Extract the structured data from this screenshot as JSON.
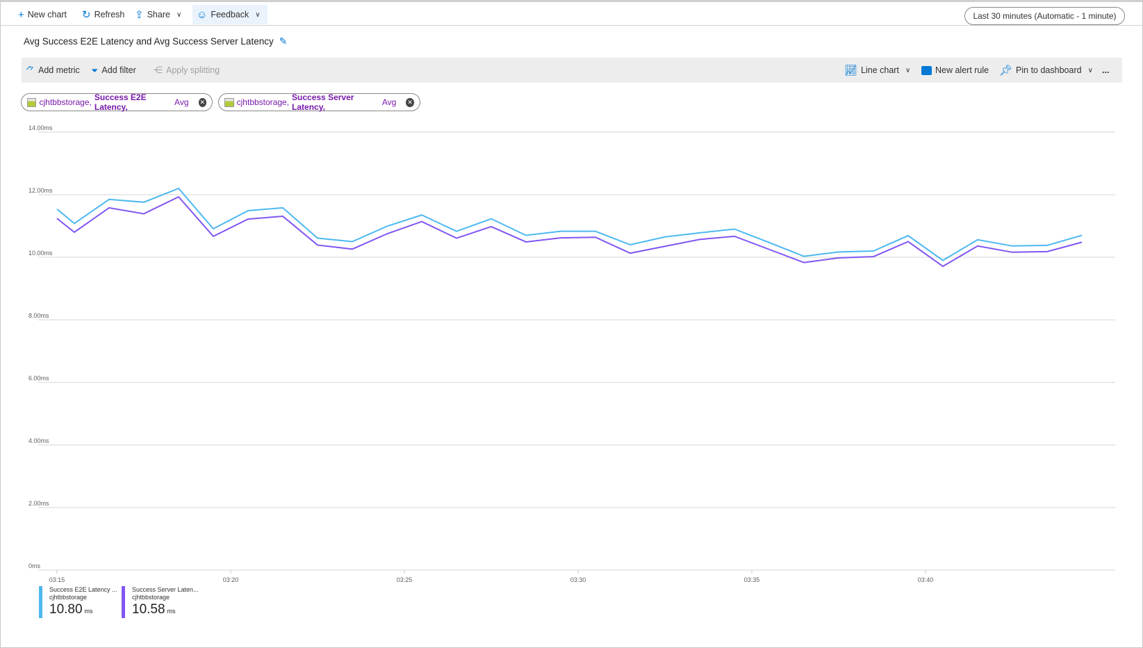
{
  "toolbar": {
    "new_chart": "New chart",
    "refresh": "Refresh",
    "share": "Share",
    "feedback": "Feedback",
    "time_range": "Last 30 minutes (Automatic - 1 minute)"
  },
  "chart_title": "Avg Success E2E Latency and Avg Success Server Latency",
  "chart_toolbar": {
    "add_metric": "Add metric",
    "add_filter": "Add filter",
    "apply_splitting": "Apply splitting",
    "line_chart": "Line chart",
    "new_alert_rule": "New alert rule",
    "pin_to_dashboard": "Pin to dashboard",
    "more": "..."
  },
  "metric_chips": [
    {
      "resource": "cjhtbbstorage,",
      "metric": "Success E2E Latency,",
      "agg": "Avg"
    },
    {
      "resource": "cjhtbbstorage,",
      "metric": "Success Server Latency,",
      "agg": "Avg"
    }
  ],
  "legend": [
    {
      "name": "Success E2E Latency ...",
      "resource": "cjhtbbstorage",
      "value": "10.80",
      "unit": "ms",
      "color": "#4db8f0"
    },
    {
      "name": "Success Server Laten...",
      "resource": "cjhtbbstorage",
      "value": "10.58",
      "unit": "ms",
      "color": "#8155f2"
    }
  ],
  "chart_data": {
    "type": "line",
    "x_unit": "minutes",
    "x": [
      "03:15:00",
      "03:15:30",
      "03:16:30",
      "03:17:30",
      "03:18:30",
      "03:19:30",
      "03:20:30",
      "03:21:30",
      "03:22:30",
      "03:23:30",
      "03:24:30",
      "03:25:30",
      "03:26:30",
      "03:27:30",
      "03:28:30",
      "03:29:30",
      "03:30:30",
      "03:31:30",
      "03:32:30",
      "03:33:30",
      "03:34:30",
      "03:35:30",
      "03:36:30",
      "03:37:30",
      "03:38:30",
      "03:39:30",
      "03:40:30",
      "03:41:30",
      "03:42:30",
      "03:43:30",
      "03:44:30"
    ],
    "series": [
      {
        "name": "Success E2E Latency",
        "color": "#4db8f0",
        "values": [
          11.54,
          11.08,
          11.85,
          11.76,
          12.2,
          10.91,
          11.49,
          11.58,
          10.61,
          10.5,
          10.99,
          11.35,
          10.83,
          11.23,
          10.7,
          10.83,
          10.83,
          10.4,
          10.65,
          10.78,
          10.9,
          10.47,
          10.03,
          10.17,
          10.2,
          10.69,
          9.9,
          10.56,
          10.36,
          10.38,
          10.7
        ]
      },
      {
        "name": "Success Server Latency",
        "color": "#8155f2",
        "values": [
          11.24,
          10.8,
          11.58,
          11.39,
          11.93,
          10.67,
          11.22,
          11.31,
          10.39,
          10.26,
          10.75,
          11.14,
          10.61,
          10.98,
          10.49,
          10.62,
          10.64,
          10.13,
          10.35,
          10.57,
          10.67,
          10.25,
          9.83,
          9.98,
          10.02,
          10.5,
          9.71,
          10.36,
          10.16,
          10.18,
          10.48
        ]
      }
    ],
    "y_ticks": [
      "0ms",
      "2.00ms",
      "4.00ms",
      "6.00ms",
      "8.00ms",
      "10.00ms",
      "12.00ms",
      "14.00ms"
    ],
    "x_ticks": [
      "03:15",
      "03:20",
      "03:25",
      "03:30",
      "03:35",
      "03:40"
    ],
    "ylim": [
      0,
      14
    ],
    "grid": true,
    "legend_position": "bottom-left"
  }
}
